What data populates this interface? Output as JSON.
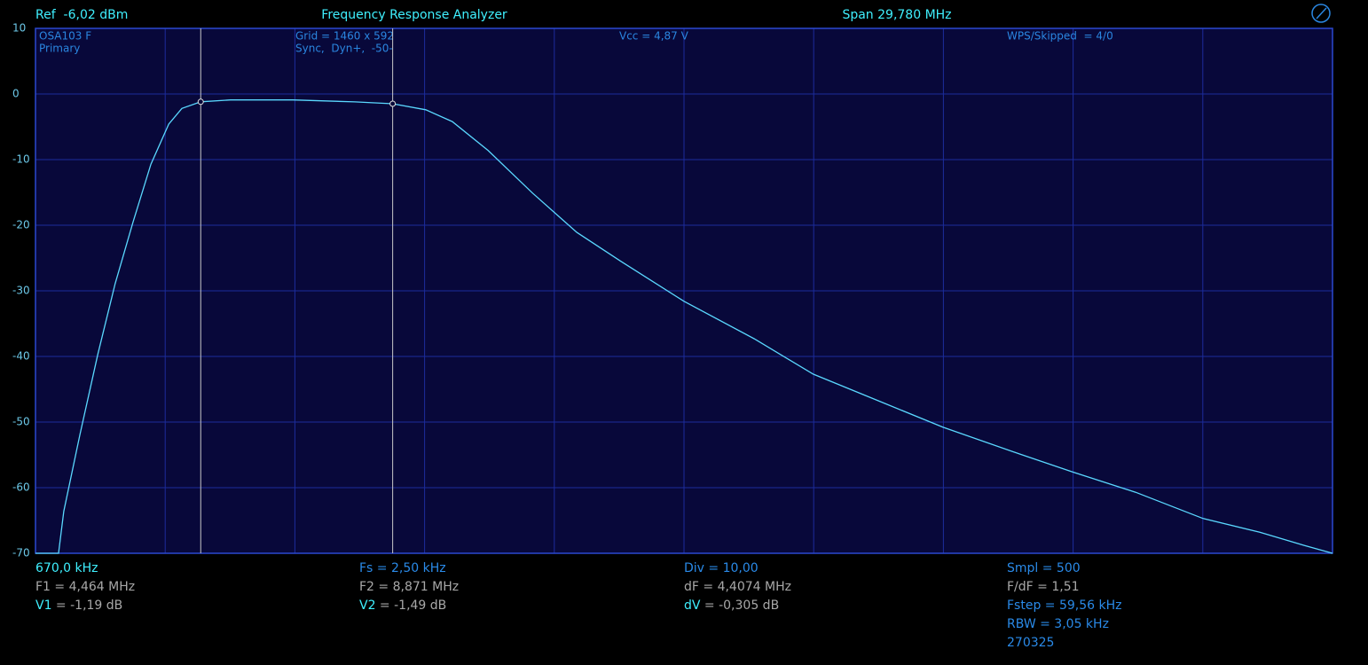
{
  "header": {
    "ref": "Ref  -6,02 dBm",
    "title": "Frequency Response Analyzer",
    "span": "Span 29,780 MHz"
  },
  "overlay": {
    "device": "OSA103 F",
    "channel": "Primary",
    "grid": "Grid = 1460 x 592",
    "sync": "Sync,  Dyn+,  -50-",
    "vcc": "Vcc = 4,87 V",
    "wps": "WPS/Skipped  = 4/0"
  },
  "chart_data": {
    "type": "line",
    "xlim": [
      0.67,
      30.45
    ],
    "xticks": [
      0.67,
      3.648,
      6.626,
      9.604,
      12.582,
      15.56,
      18.538,
      21.516,
      24.494,
      27.472,
      30.45
    ],
    "ylim": [
      -70,
      10
    ],
    "yticks": [
      10,
      0,
      -10,
      -20,
      -30,
      -40,
      -50,
      -60,
      -70
    ],
    "grid": true,
    "series": [
      {
        "color": "#5ad8ff",
        "x": [
          0.67,
          1.2,
          1.32,
          1.69,
          2.1,
          2.5,
          2.91,
          3.32,
          3.73,
          4.03,
          4.464,
          5.15,
          6.58,
          8.0,
          8.871,
          9.63,
          10.24,
          11.06,
          12.08,
          13.1,
          14.11,
          15.56,
          17.17,
          18.53,
          20.22,
          21.51,
          23.28,
          24.48,
          25.93,
          27.48,
          28.78,
          29.8,
          30.45
        ],
        "values": [
          -70,
          -70,
          -63.6,
          -51.9,
          -39.7,
          -28.9,
          -19.5,
          -10.7,
          -4.6,
          -2.2,
          -1.19,
          -0.9,
          -0.9,
          -1.2,
          -1.49,
          -2.4,
          -4.2,
          -8.6,
          -15.1,
          -21.1,
          -25.5,
          -31.6,
          -37.3,
          -42.7,
          -47.3,
          -50.8,
          -54.9,
          -57.6,
          -60.7,
          -64.7,
          -66.8,
          -68.8,
          -70
        ]
      }
    ],
    "markers": [
      {
        "x": 4.464,
        "y": -1.19
      },
      {
        "x": 8.871,
        "y": -1.49
      }
    ]
  },
  "readouts": [
    {
      "start": "670,0 kHz",
      "f": "F1 = 4,464 MHz",
      "v_label": "V1",
      "v_value": " = -1,19 dB"
    },
    {
      "start": "Fs = 2,50 kHz",
      "f": "F2 = 8,871 MHz",
      "v_label": "V2",
      "v_value": " = -1,49 dB"
    },
    {
      "start": "Div = 10,00",
      "f": "dF = 4,4074 MHz",
      "v_label": "dV",
      "v_value": " = -0,305 dB"
    },
    {
      "start": "Smpl = 500",
      "f": "F/dF = 1,51",
      "fstep": "Fstep = 59,56 kHz",
      "rbw": "RBW = 3,05 kHz",
      "id": "270325"
    }
  ]
}
